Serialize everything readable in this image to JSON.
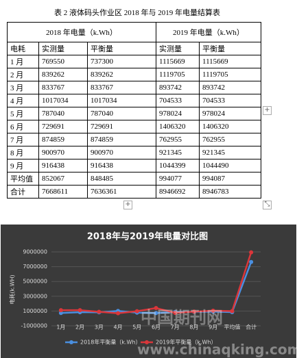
{
  "table": {
    "title": "表 2  液体码头作业区 2018 年与 2019 年电量结算表",
    "group_headers": [
      "2018 年电量（k.Wh）",
      "2019 年电量（k.Wh）"
    ],
    "headers": [
      "电耗",
      "实测量",
      "平衡量",
      "实测量",
      "平衡量"
    ],
    "rows": [
      [
        "1 月",
        769550,
        737300,
        1115669,
        1115669
      ],
      [
        "2 月",
        839262,
        839262,
        1119705,
        1119705
      ],
      [
        "3 月",
        833767,
        833767,
        893742,
        893742
      ],
      [
        "4 月",
        1017034,
        1017034,
        704533,
        704533
      ],
      [
        "5 月",
        787040,
        787040,
        978024,
        978024
      ],
      [
        "6 月",
        729691,
        729691,
        1406320,
        1406320
      ],
      [
        "7 月",
        874859,
        874859,
        762955,
        762955
      ],
      [
        "8 月",
        900970,
        900970,
        921345,
        921345
      ],
      [
        "9 月",
        916438,
        916438,
        1044399,
        1044490
      ],
      [
        "平均值",
        852067,
        848485,
        994077,
        994087
      ],
      [
        "合计",
        7668611,
        7636361,
        8946692,
        8946783
      ]
    ]
  },
  "chart_data": {
    "type": "line",
    "title": "2018年与2019年电量对比图",
    "y_label": "电耗(k.WH)",
    "categories": [
      "1月",
      "2月",
      "3月",
      "4月",
      "5月",
      "6月",
      "7月",
      "8月",
      "9月",
      "平均值",
      "合计"
    ],
    "series": [
      {
        "name": "2018年平衡量（k.Wh）",
        "color": "#4a8fe0",
        "values": [
          737300,
          839262,
          833767,
          1017034,
          787040,
          729691,
          874859,
          900970,
          916438,
          848485,
          7636361
        ]
      },
      {
        "name": "2019年平衡量（k.Wh）",
        "color": "#d9363a",
        "values": [
          1115669,
          1119705,
          893742,
          704533,
          978024,
          1406320,
          762955,
          921345,
          1044490,
          994087,
          8946783
        ]
      }
    ],
    "ylim": [
      -1000000,
      9000000
    ],
    "yticks": [
      -1000000,
      1000000,
      3000000,
      5000000,
      7000000,
      9000000
    ],
    "grid": true
  },
  "watermark": {
    "name": "中国期刊网",
    "url": "www.chinaqking.com"
  }
}
